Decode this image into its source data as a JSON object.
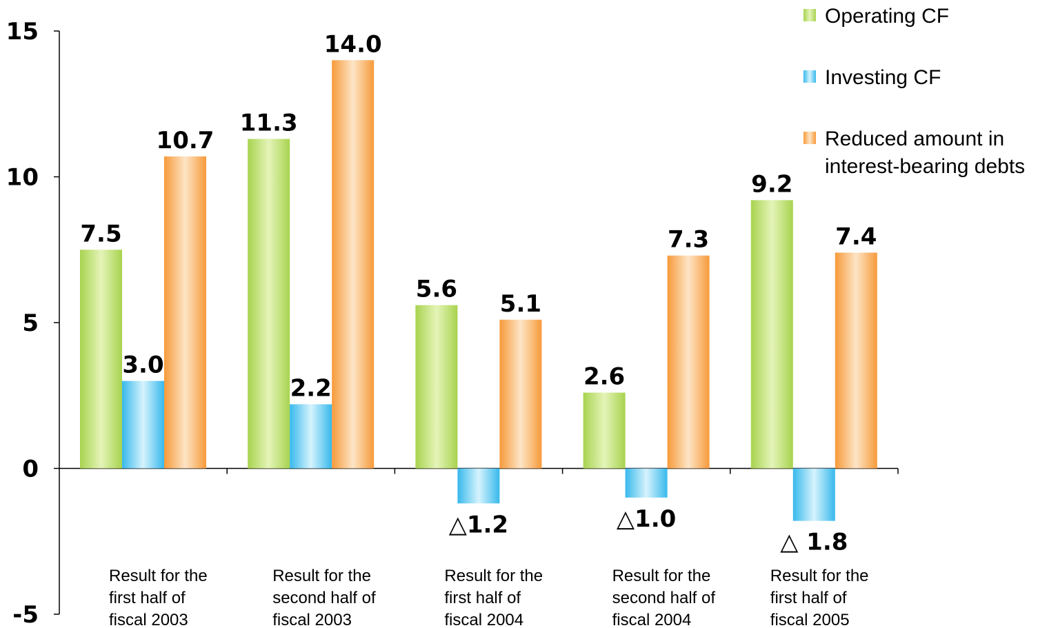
{
  "chart_data": {
    "type": "bar",
    "ylim": [
      -5,
      15
    ],
    "yticks": [
      15,
      10,
      5,
      0,
      -5
    ],
    "categories": [
      [
        "Result for the",
        "first half of",
        "fiscal 2003"
      ],
      [
        "Result for the",
        "second half of",
        "fiscal 2003"
      ],
      [
        "Result for the",
        "first half of",
        "fiscal 2004"
      ],
      [
        "Result for the",
        "second half of",
        "fiscal 2004"
      ],
      [
        "Result for the",
        "first half of",
        "fiscal 2005"
      ]
    ],
    "series": [
      {
        "name": "Operating CF",
        "values": [
          7.5,
          11.3,
          5.6,
          2.6,
          9.2
        ],
        "labels": [
          "7.5",
          "11.3",
          "5.6",
          "2.6",
          "9.2"
        ],
        "color": "#b5dc64"
      },
      {
        "name": "Investing CF",
        "values": [
          3.0,
          2.2,
          -1.2,
          -1.0,
          -1.8
        ],
        "labels": [
          "3.0",
          "2.2",
          "△1.2",
          "△1.0",
          "△ 1.8"
        ],
        "color": "#4cc4f0"
      },
      {
        "name": "Reduced amount in interest-bearing debts",
        "values": [
          10.7,
          14.0,
          5.1,
          7.3,
          7.4
        ],
        "labels": [
          "10.7",
          "14.0",
          "5.1",
          "7.3",
          "7.4"
        ],
        "legend_lines": [
          "Reduced amount in",
          "interest-bearing debts"
        ],
        "color": "#f9a64c"
      }
    ],
    "legend_position": "top-right",
    "grid": false
  }
}
